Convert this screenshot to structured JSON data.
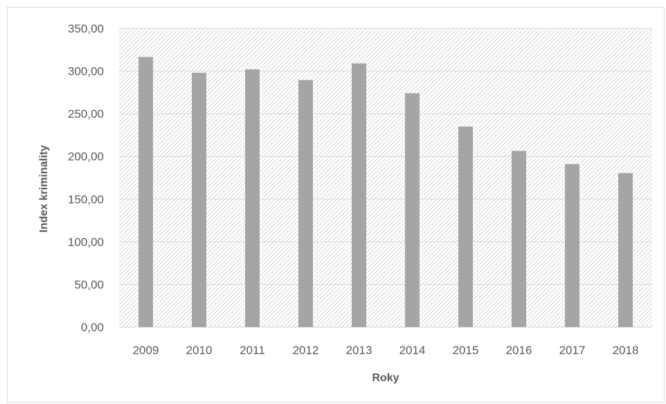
{
  "chart_data": {
    "type": "bar",
    "title": "",
    "xlabel": "Roky",
    "ylabel": "Index kriminality",
    "categories": [
      "2009",
      "2010",
      "2011",
      "2012",
      "2013",
      "2014",
      "2015",
      "2016",
      "2017",
      "2018"
    ],
    "values": [
      316.5,
      298.0,
      302.0,
      289.5,
      309.0,
      274.0,
      235.0,
      206.5,
      191.0,
      180.5
    ],
    "ylim": [
      0,
      350
    ],
    "yticks": [
      0,
      50,
      100,
      150,
      200,
      250,
      300,
      350
    ],
    "ytick_labels": [
      "0,00",
      "50,00",
      "100,00",
      "150,00",
      "200,00",
      "250,00",
      "300,00",
      "350,00"
    ],
    "grid": true,
    "legend": "none",
    "colors": {
      "bar": "#a5a5a5",
      "grid": "#d9d9d9",
      "plot_hatch": "#d0d0d0",
      "text": "#595959"
    }
  }
}
